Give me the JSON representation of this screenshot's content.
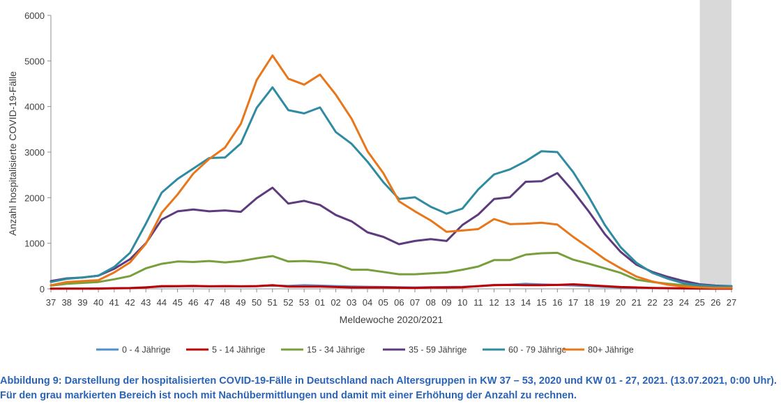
{
  "chart_data": {
    "type": "line",
    "xlabel": "Meldewoche 2020/2021",
    "ylabel": "Anzahl hospitalisierte COVID-19-Fälle",
    "ylim": [
      0,
      6000
    ],
    "yticks": [
      "0",
      "1000",
      "2000",
      "3000",
      "4000",
      "5000",
      "6000"
    ],
    "categories": [
      "37",
      "38",
      "39",
      "40",
      "41",
      "42",
      "43",
      "44",
      "45",
      "46",
      "47",
      "48",
      "49",
      "50",
      "51",
      "52",
      "53",
      "01",
      "02",
      "03",
      "04",
      "05",
      "06",
      "07",
      "08",
      "09",
      "10",
      "11",
      "12",
      "13",
      "14",
      "15",
      "16",
      "17",
      "18",
      "19",
      "20",
      "21",
      "22",
      "23",
      "24",
      "25",
      "26",
      "27"
    ],
    "shaded_weeks": [
      "25",
      "27"
    ],
    "series": [
      {
        "name": "0 - 4 Jährige",
        "color": "#4f8fd0",
        "values": [
          5,
          8,
          8,
          10,
          15,
          20,
          35,
          50,
          55,
          60,
          55,
          60,
          55,
          60,
          70,
          65,
          80,
          70,
          60,
          50,
          45,
          40,
          35,
          30,
          35,
          40,
          45,
          60,
          85,
          90,
          110,
          95,
          85,
          75,
          60,
          45,
          30,
          20,
          15,
          10,
          8,
          5,
          5,
          5
        ]
      },
      {
        "name": "5 - 14 Jährige",
        "color": "#c00000",
        "values": [
          3,
          5,
          5,
          5,
          10,
          15,
          30,
          60,
          60,
          65,
          55,
          60,
          55,
          60,
          80,
          50,
          50,
          50,
          40,
          30,
          30,
          30,
          25,
          20,
          30,
          30,
          35,
          60,
          80,
          85,
          80,
          80,
          85,
          100,
          80,
          60,
          40,
          30,
          20,
          15,
          10,
          8,
          5,
          5
        ]
      },
      {
        "name": "15 - 34 Jährige",
        "color": "#77a03c",
        "values": [
          70,
          110,
          130,
          150,
          210,
          280,
          450,
          550,
          600,
          590,
          610,
          580,
          610,
          670,
          720,
          600,
          610,
          590,
          540,
          420,
          420,
          370,
          320,
          320,
          340,
          360,
          420,
          490,
          630,
          630,
          750,
          780,
          790,
          640,
          550,
          450,
          350,
          200,
          150,
          110,
          80,
          50,
          40,
          40
        ]
      },
      {
        "name": "35 - 59 Jährige",
        "color": "#5e3b7e",
        "values": [
          170,
          230,
          250,
          290,
          440,
          650,
          1000,
          1520,
          1700,
          1740,
          1700,
          1720,
          1690,
          1990,
          2220,
          1870,
          1930,
          1840,
          1620,
          1480,
          1240,
          1140,
          980,
          1050,
          1090,
          1050,
          1400,
          1630,
          1970,
          2010,
          2350,
          2360,
          2540,
          2140,
          1690,
          1200,
          810,
          530,
          370,
          260,
          170,
          100,
          70,
          60
        ]
      },
      {
        "name": "60 - 79 Jährige",
        "color": "#2e8ba0",
        "values": [
          150,
          220,
          250,
          290,
          480,
          790,
          1430,
          2110,
          2410,
          2640,
          2870,
          2880,
          3190,
          3970,
          4420,
          3920,
          3850,
          3980,
          3440,
          3180,
          2790,
          2340,
          1970,
          2010,
          1800,
          1650,
          1760,
          2180,
          2510,
          2620,
          2800,
          3020,
          3000,
          2560,
          2010,
          1400,
          910,
          570,
          350,
          220,
          120,
          80,
          60,
          60
        ]
      },
      {
        "name": "80+ Jährige",
        "color": "#e8761a",
        "values": [
          80,
          150,
          170,
          190,
          360,
          580,
          990,
          1670,
          2070,
          2530,
          2850,
          3100,
          3620,
          4580,
          5120,
          4610,
          4480,
          4700,
          4260,
          3730,
          3020,
          2540,
          1920,
          1700,
          1500,
          1250,
          1280,
          1310,
          1530,
          1420,
          1430,
          1450,
          1410,
          1140,
          900,
          650,
          450,
          270,
          160,
          90,
          50,
          30,
          20,
          20
        ]
      }
    ]
  },
  "caption": "Abbildung 9: Darstellung der hospitalisierten COVID-19-Fälle in Deutschland nach Altersgruppen in KW 37 – 53, 2020 und KW 01 - 27, 2021. (13.07.2021, 0:00 Uhr). Für den grau markierten Bereich ist noch mit Nachübermittlungen und damit mit einer Erhöhung der Anzahl zu rechnen."
}
